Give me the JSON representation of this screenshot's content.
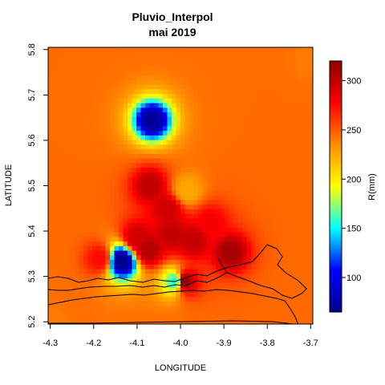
{
  "chart_data": {
    "type": "heatmap",
    "title": "Pluvio_Interpol",
    "subtitle": "mai 2019",
    "xlabel": "LONGITUDE",
    "ylabel": "LATITUDE",
    "xlim": [
      -4.305,
      -3.695
    ],
    "ylim": [
      5.195,
      5.805
    ],
    "x_ticks": [
      "-4.3",
      "-4.2",
      "-4.1",
      "-4.0",
      "-3.9",
      "-3.8",
      "-3.7"
    ],
    "y_ticks": [
      "5.2",
      "5.3",
      "5.4",
      "5.5",
      "5.6",
      "5.7",
      "5.8"
    ],
    "colorbar": {
      "label": "R(mm)",
      "range": [
        65,
        320
      ],
      "ticks": [
        "100",
        "150",
        "200",
        "250",
        "300"
      ],
      "colors": [
        "#00008b",
        "#0000ff",
        "#00ffff",
        "#ffff00",
        "#ff8c00",
        "#ff0000",
        "#8b0000"
      ]
    },
    "base_value": 245,
    "stations": [
      {
        "lon": -4.065,
        "lat": 5.645,
        "value": 70
      },
      {
        "lon": -4.07,
        "lat": 5.5,
        "value": 300
      },
      {
        "lon": -3.985,
        "lat": 5.49,
        "value": 225
      },
      {
        "lon": -4.03,
        "lat": 5.45,
        "value": 295
      },
      {
        "lon": -4.1,
        "lat": 5.385,
        "value": 295
      },
      {
        "lon": -4.075,
        "lat": 5.36,
        "value": 305
      },
      {
        "lon": -4.02,
        "lat": 5.395,
        "value": 300
      },
      {
        "lon": -3.97,
        "lat": 5.38,
        "value": 300
      },
      {
        "lon": -3.885,
        "lat": 5.355,
        "value": 310
      },
      {
        "lon": -4.135,
        "lat": 5.335,
        "value": 65
      },
      {
        "lon": -4.185,
        "lat": 5.34,
        "value": 275
      },
      {
        "lon": -4.01,
        "lat": 5.29,
        "value": 150
      },
      {
        "lon": -3.995,
        "lat": 5.29,
        "value": 320
      },
      {
        "lon": -3.93,
        "lat": 5.42,
        "value": 280
      },
      {
        "lon": -3.7,
        "lat": 5.78,
        "value": 240
      },
      {
        "lon": -4.3,
        "lat": 5.2,
        "value": 240
      }
    ]
  }
}
